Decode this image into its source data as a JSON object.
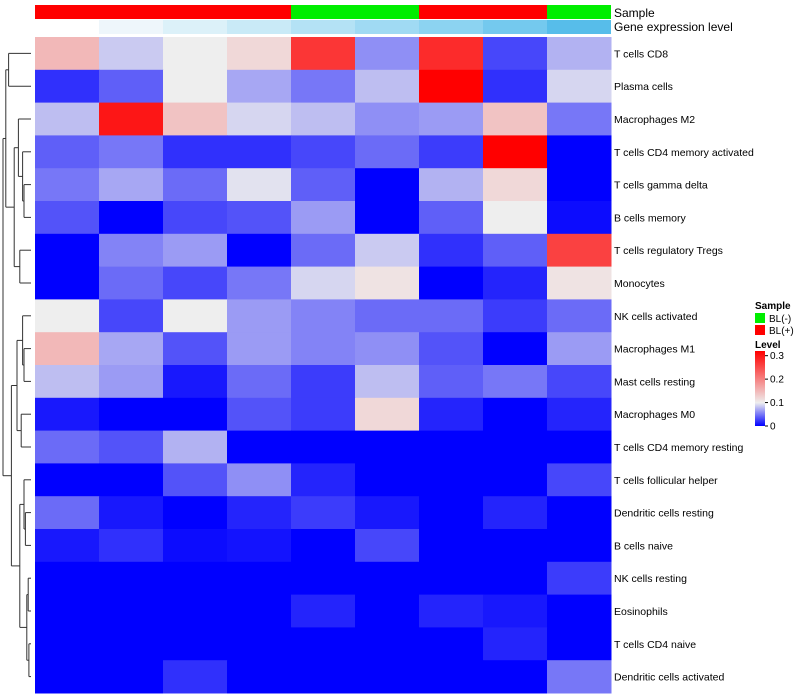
{
  "chart_data": {
    "type": "heatmap",
    "annotations": {
      "sample_label": "Sample",
      "gene_label": "Gene expression level",
      "sample_groups": [
        "BL(+)",
        "BL(+)",
        "BL(+)",
        "BL(+)",
        "BL(-)",
        "BL(-)",
        "BL(+)",
        "BL(+)",
        "BL(-)"
      ],
      "gene_level_colors": [
        "#ffffff",
        "#eef6fb",
        "#dcf1f9",
        "#c9eaf7",
        "#b4e2f5",
        "#a0daf3",
        "#8cd3f1",
        "#74c9ee",
        "#57bdea"
      ]
    },
    "rows": [
      "T cells CD8",
      "Plasma cells",
      "Macrophages M2",
      "T cells CD4 memory activated",
      "T cells gamma delta",
      "B cells memory",
      "T cells regulatory  Tregs",
      "Monocytes",
      "NK cells activated",
      "Macrophages M1",
      "Mast cells resting",
      "Macrophages M0",
      "T cells CD4 memory resting",
      "T cells follicular helper",
      "Dendritic cells resting",
      "B cells naive",
      "NK cells resting",
      "Eosinophils",
      "T cells CD4 naive",
      "Dendritic cells activated"
    ],
    "values": [
      [
        0.15,
        0.085,
        0.1,
        0.12,
        0.27,
        0.06,
        0.28,
        0.03,
        0.075
      ],
      [
        0.02,
        0.04,
        0.1,
        0.07,
        0.05,
        0.08,
        0.32,
        0.02,
        0.09
      ],
      [
        0.08,
        0.3,
        0.14,
        0.09,
        0.08,
        0.06,
        0.065,
        0.14,
        0.05
      ],
      [
        0.04,
        0.05,
        0.02,
        0.02,
        0.03,
        0.045,
        0.025,
        0.32,
        0.0
      ],
      [
        0.05,
        0.07,
        0.045,
        0.095,
        0.04,
        0.0,
        0.075,
        0.12,
        0.0
      ],
      [
        0.035,
        0.0,
        0.03,
        0.035,
        0.065,
        0.0,
        0.04,
        0.1,
        0.005
      ],
      [
        0.0,
        0.055,
        0.065,
        0.0,
        0.045,
        0.085,
        0.02,
        0.04,
        0.26
      ],
      [
        0.0,
        0.045,
        0.03,
        0.05,
        0.09,
        0.11,
        0.0,
        0.015,
        0.11
      ],
      [
        0.1,
        0.03,
        0.1,
        0.065,
        0.055,
        0.045,
        0.045,
        0.025,
        0.045
      ],
      [
        0.15,
        0.07,
        0.035,
        0.065,
        0.055,
        0.06,
        0.035,
        0.0,
        0.065
      ],
      [
        0.08,
        0.065,
        0.01,
        0.045,
        0.025,
        0.08,
        0.04,
        0.05,
        0.03
      ],
      [
        0.01,
        0.0,
        0.0,
        0.035,
        0.025,
        0.12,
        0.015,
        0.0,
        0.015
      ],
      [
        0.045,
        0.035,
        0.075,
        0.0,
        0.0,
        0.0,
        0.0,
        0.0,
        0.0
      ],
      [
        0.0,
        0.0,
        0.035,
        0.06,
        0.015,
        0.0,
        0.0,
        0.0,
        0.03
      ],
      [
        0.045,
        0.01,
        0.0,
        0.015,
        0.025,
        0.01,
        0.0,
        0.015,
        0.0
      ],
      [
        0.01,
        0.02,
        0.005,
        0.008,
        0.0,
        0.03,
        0.0,
        0.0,
        0.0
      ],
      [
        0.0,
        0.0,
        0.0,
        0.0,
        0.0,
        0.0,
        0.0,
        0.0,
        0.025
      ],
      [
        0.0,
        0.0,
        0.0,
        0.0,
        0.015,
        0.0,
        0.015,
        0.01,
        0.0
      ],
      [
        0.0,
        0.0,
        0.0,
        0.0,
        0.0,
        0.0,
        0.0,
        0.015,
        0.0
      ],
      [
        0.0,
        0.0,
        0.02,
        0.0,
        0.0,
        0.0,
        0.0,
        0.0,
        0.05
      ]
    ],
    "color_scale": {
      "min": 0,
      "mid": 0.1,
      "max": 0.32,
      "low_color": "#0000ff",
      "mid_color": "#eeeeee",
      "high_color": "#ff0000"
    },
    "legend": {
      "sample_title": "Sample",
      "sample_entries": [
        {
          "label": "BL(-)",
          "color": "#00ee00"
        },
        {
          "label": "BL(+)",
          "color": "#ff0000"
        }
      ],
      "level_title": "Level",
      "level_ticks": [
        "0.3",
        "0.2",
        "0.1",
        "0"
      ],
      "placement": "right"
    }
  }
}
